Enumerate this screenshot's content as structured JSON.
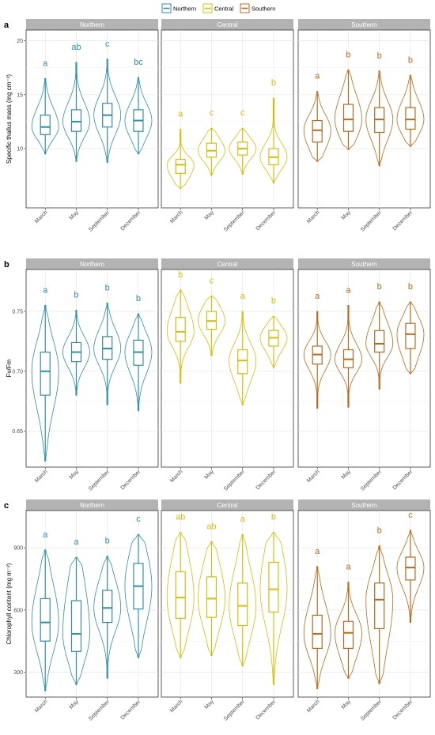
{
  "legend": {
    "title": "",
    "entries": [
      {
        "name": "Northern",
        "color": "#2E8FA6"
      },
      {
        "name": "Central",
        "color": "#D4BE0C"
      },
      {
        "name": "Southern",
        "color": "#B8691C"
      }
    ]
  },
  "chart_data": [
    {
      "type": "violin-box",
      "label": "a",
      "ylabel": "Specific thallus mass (mg cm⁻²)",
      "ylim": [
        4.5,
        21
      ],
      "yticks": [
        10,
        15,
        20
      ],
      "categories": [
        "March",
        "May",
        "September",
        "December"
      ],
      "facets": [
        "Northern",
        "Central",
        "Southern"
      ],
      "series": [
        {
          "name": "Northern",
          "groups": [
            {
              "category": "March",
              "min": 9.5,
              "q1": 11.3,
              "median": 12.0,
              "q3": 13.1,
              "max": 16.5,
              "letter": "a"
            },
            {
              "category": "May",
              "min": 8.8,
              "q1": 11.6,
              "median": 12.5,
              "q3": 13.6,
              "max": 18.0,
              "letter": "ab"
            },
            {
              "category": "September",
              "min": 8.7,
              "q1": 12.0,
              "median": 13.1,
              "q3": 14.2,
              "max": 18.3,
              "letter": "c"
            },
            {
              "category": "December",
              "min": 9.5,
              "q1": 11.6,
              "median": 12.6,
              "q3": 13.6,
              "max": 16.6,
              "letter": "bc"
            }
          ]
        },
        {
          "name": "Central",
          "groups": [
            {
              "category": "March",
              "min": 6.3,
              "q1": 7.7,
              "median": 8.5,
              "q3": 9.0,
              "max": 11.8,
              "letter": "a"
            },
            {
              "category": "May",
              "min": 7.5,
              "q1": 9.2,
              "median": 9.8,
              "q3": 10.5,
              "max": 11.9,
              "letter": "c"
            },
            {
              "category": "September",
              "min": 7.6,
              "q1": 9.4,
              "median": 10.0,
              "q3": 10.6,
              "max": 11.9,
              "letter": "c"
            },
            {
              "category": "December",
              "min": 6.8,
              "q1": 8.5,
              "median": 9.2,
              "q3": 10.0,
              "max": 14.7,
              "letter": "b"
            }
          ]
        },
        {
          "name": "Southern",
          "groups": [
            {
              "category": "March",
              "min": 8.8,
              "q1": 10.6,
              "median": 11.7,
              "q3": 12.6,
              "max": 15.3,
              "letter": "a"
            },
            {
              "category": "May",
              "min": 9.9,
              "q1": 11.6,
              "median": 12.7,
              "q3": 14.1,
              "max": 17.3,
              "letter": "b"
            },
            {
              "category": "September",
              "min": 8.4,
              "q1": 11.5,
              "median": 12.7,
              "q3": 13.8,
              "max": 17.2,
              "letter": "b"
            },
            {
              "category": "December",
              "min": 10.2,
              "q1": 11.8,
              "median": 12.7,
              "q3": 13.8,
              "max": 16.8,
              "letter": "b"
            }
          ]
        }
      ]
    },
    {
      "type": "violin-box",
      "label": "b",
      "ylabel": "Fv/Fm",
      "ylim": [
        0.62,
        0.785
      ],
      "yticks": [
        0.65,
        0.7,
        0.75
      ],
      "ytick_labels": [
        "0.65",
        "0.70",
        "0.75"
      ],
      "categories": [
        "March",
        "May",
        "September",
        "December"
      ],
      "facets": [
        "Northern",
        "Central",
        "Southern"
      ],
      "series": [
        {
          "name": "Northern",
          "groups": [
            {
              "category": "March",
              "min": 0.625,
              "q1": 0.68,
              "median": 0.7,
              "q3": 0.716,
              "max": 0.755,
              "letter": "a"
            },
            {
              "category": "May",
              "min": 0.68,
              "q1": 0.708,
              "median": 0.716,
              "q3": 0.724,
              "max": 0.751,
              "letter": "b"
            },
            {
              "category": "September",
              "min": 0.672,
              "q1": 0.71,
              "median": 0.719,
              "q3": 0.729,
              "max": 0.757,
              "letter": "b"
            },
            {
              "category": "December",
              "min": 0.667,
              "q1": 0.705,
              "median": 0.716,
              "q3": 0.726,
              "max": 0.748,
              "letter": "b"
            }
          ]
        },
        {
          "name": "Central",
          "groups": [
            {
              "category": "March",
              "min": 0.69,
              "q1": 0.725,
              "median": 0.733,
              "q3": 0.745,
              "max": 0.768,
              "letter": "b"
            },
            {
              "category": "May",
              "min": 0.713,
              "q1": 0.735,
              "median": 0.742,
              "q3": 0.75,
              "max": 0.763,
              "letter": "c"
            },
            {
              "category": "September",
              "min": 0.672,
              "q1": 0.698,
              "median": 0.709,
              "q3": 0.718,
              "max": 0.75,
              "letter": "a"
            },
            {
              "category": "December",
              "min": 0.703,
              "q1": 0.721,
              "median": 0.728,
              "q3": 0.734,
              "max": 0.746,
              "letter": "b"
            }
          ]
        },
        {
          "name": "Southern",
          "groups": [
            {
              "category": "March",
              "min": 0.669,
              "q1": 0.706,
              "median": 0.714,
              "q3": 0.721,
              "max": 0.75,
              "letter": "a"
            },
            {
              "category": "May",
              "min": 0.67,
              "q1": 0.703,
              "median": 0.71,
              "q3": 0.718,
              "max": 0.755,
              "letter": "a"
            },
            {
              "category": "September",
              "min": 0.685,
              "q1": 0.716,
              "median": 0.723,
              "q3": 0.734,
              "max": 0.758,
              "letter": "b"
            },
            {
              "category": "December",
              "min": 0.698,
              "q1": 0.719,
              "median": 0.731,
              "q3": 0.74,
              "max": 0.758,
              "letter": "b"
            }
          ]
        }
      ]
    },
    {
      "type": "violin-box",
      "label": "c",
      "ylabel": "Chlorophyll content (mg m⁻²)",
      "ylim": [
        180,
        1080
      ],
      "yticks": [
        300,
        600,
        900
      ],
      "categories": [
        "March",
        "May",
        "September",
        "December"
      ],
      "facets": [
        "Northern",
        "Central",
        "Southern"
      ],
      "series": [
        {
          "name": "Northern",
          "groups": [
            {
              "category": "March",
              "min": 210,
              "q1": 450,
              "median": 540,
              "q3": 655,
              "max": 890,
              "letter": "a"
            },
            {
              "category": "May",
              "min": 240,
              "q1": 400,
              "median": 485,
              "q3": 645,
              "max": 855,
              "letter": "a"
            },
            {
              "category": "September",
              "min": 270,
              "q1": 540,
              "median": 610,
              "q3": 695,
              "max": 860,
              "letter": "b"
            },
            {
              "category": "December",
              "min": 370,
              "q1": 605,
              "median": 715,
              "q3": 825,
              "max": 965,
              "letter": "c"
            }
          ]
        },
        {
          "name": "Central",
          "groups": [
            {
              "category": "March",
              "min": 370,
              "q1": 560,
              "median": 660,
              "q3": 785,
              "max": 975,
              "letter": "ab"
            },
            {
              "category": "May",
              "min": 380,
              "q1": 565,
              "median": 655,
              "q3": 760,
              "max": 930,
              "letter": "ab"
            },
            {
              "category": "September",
              "min": 330,
              "q1": 525,
              "median": 620,
              "q3": 730,
              "max": 965,
              "letter": "a"
            },
            {
              "category": "December",
              "min": 240,
              "q1": 590,
              "median": 700,
              "q3": 830,
              "max": 975,
              "letter": "b"
            }
          ]
        },
        {
          "name": "Southern",
          "groups": [
            {
              "category": "March",
              "min": 220,
              "q1": 415,
              "median": 485,
              "q3": 575,
              "max": 810,
              "letter": "a"
            },
            {
              "category": "May",
              "min": 270,
              "q1": 415,
              "median": 490,
              "q3": 545,
              "max": 735,
              "letter": "a"
            },
            {
              "category": "September",
              "min": 245,
              "q1": 510,
              "median": 650,
              "q3": 730,
              "max": 910,
              "letter": "b"
            },
            {
              "category": "December",
              "min": 540,
              "q1": 745,
              "median": 805,
              "q3": 855,
              "max": 985,
              "letter": "c"
            }
          ]
        }
      ]
    }
  ]
}
